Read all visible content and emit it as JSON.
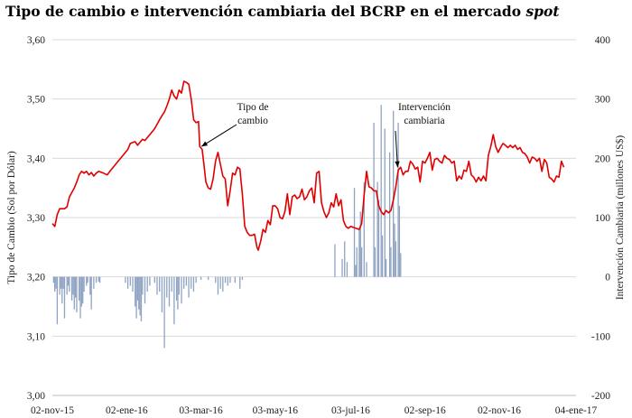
{
  "chart_data": {
    "type": "line",
    "title_main": "Tipo de cambio e intervención cambiaria del BCRP en el mercado ",
    "title_em": "spot",
    "ylabel_left": "Tipo de Cambio (Sol por Dólar)",
    "ylabel_right": "Intervención Cambiaria (millones US$)",
    "x_ticks": [
      "02-nov-15",
      "02-ene-16",
      "03-mar-16",
      "03-may-16",
      "03-jul-16",
      "02-sep-16",
      "02-nov-16",
      "04-ene-17"
    ],
    "y_left_ticks": [
      "3,60",
      "3,50",
      "3,40",
      "3,30",
      "3,20",
      "3,10",
      "3,00"
    ],
    "y_right_ticks": [
      "400",
      "300",
      "200",
      "100",
      "0",
      "-100",
      "-200"
    ],
    "ylim_left": [
      3.0,
      3.6
    ],
    "ylim_right": [
      -200,
      400
    ],
    "xlim": [
      0,
      430
    ],
    "series": [
      {
        "name": "Tipo de cambio",
        "type": "line",
        "color": "#e00000",
        "points": [
          [
            0,
            3.29
          ],
          [
            2,
            3.285
          ],
          [
            4,
            3.305
          ],
          [
            6,
            3.315
          ],
          [
            10,
            3.315
          ],
          [
            12,
            3.318
          ],
          [
            14,
            3.335
          ],
          [
            18,
            3.35
          ],
          [
            20,
            3.36
          ],
          [
            22,
            3.372
          ],
          [
            24,
            3.378
          ],
          [
            26,
            3.375
          ],
          [
            28,
            3.378
          ],
          [
            30,
            3.372
          ],
          [
            32,
            3.376
          ],
          [
            34,
            3.37
          ],
          [
            36,
            3.375
          ],
          [
            38,
            3.378
          ],
          [
            42,
            3.375
          ],
          [
            45,
            3.372
          ],
          [
            48,
            3.38
          ],
          [
            50,
            3.385
          ],
          [
            54,
            3.395
          ],
          [
            58,
            3.405
          ],
          [
            62,
            3.415
          ],
          [
            64,
            3.425
          ],
          [
            68,
            3.428
          ],
          [
            70,
            3.422
          ],
          [
            74,
            3.432
          ],
          [
            76,
            3.43
          ],
          [
            80,
            3.44
          ],
          [
            84,
            3.45
          ],
          [
            88,
            3.465
          ],
          [
            90,
            3.472
          ],
          [
            92,
            3.478
          ],
          [
            94,
            3.488
          ],
          [
            96,
            3.5
          ],
          [
            98,
            3.515
          ],
          [
            100,
            3.505
          ],
          [
            102,
            3.5
          ],
          [
            104,
            3.515
          ],
          [
            106,
            3.51
          ],
          [
            108,
            3.53
          ],
          [
            110,
            3.528
          ],
          [
            112,
            3.525
          ],
          [
            114,
            3.5
          ],
          [
            116,
            3.465
          ],
          [
            118,
            3.46
          ],
          [
            120,
            3.462
          ],
          [
            121,
            3.42
          ],
          [
            123,
            3.415
          ],
          [
            125,
            3.38
          ],
          [
            126,
            3.36
          ],
          [
            128,
            3.35
          ],
          [
            130,
            3.348
          ],
          [
            132,
            3.365
          ],
          [
            134,
            3.395
          ],
          [
            136,
            3.41
          ],
          [
            138,
            3.39
          ],
          [
            140,
            3.37
          ],
          [
            142,
            3.365
          ],
          [
            144,
            3.32
          ],
          [
            146,
            3.345
          ],
          [
            148,
            3.375
          ],
          [
            150,
            3.372
          ],
          [
            152,
            3.385
          ],
          [
            154,
            3.382
          ],
          [
            156,
            3.34
          ],
          [
            158,
            3.285
          ],
          [
            160,
            3.275
          ],
          [
            162,
            3.27
          ],
          [
            164,
            3.27
          ],
          [
            166,
            3.272
          ],
          [
            168,
            3.25
          ],
          [
            169,
            3.245
          ],
          [
            171,
            3.26
          ],
          [
            173,
            3.28
          ],
          [
            175,
            3.275
          ],
          [
            177,
            3.295
          ],
          [
            179,
            3.288
          ],
          [
            181,
            3.32
          ],
          [
            183,
            3.32
          ],
          [
            185,
            3.315
          ],
          [
            187,
            3.3
          ],
          [
            189,
            3.298
          ],
          [
            191,
            3.31
          ],
          [
            193,
            3.34
          ],
          [
            195,
            3.305
          ],
          [
            197,
            3.335
          ],
          [
            199,
            3.338
          ],
          [
            201,
            3.332
          ],
          [
            203,
            3.335
          ],
          [
            205,
            3.348
          ],
          [
            207,
            3.33
          ],
          [
            209,
            3.335
          ],
          [
            211,
            3.345
          ],
          [
            213,
            3.35
          ],
          [
            215,
            3.325
          ],
          [
            217,
            3.375
          ],
          [
            219,
            3.378
          ],
          [
            221,
            3.325
          ],
          [
            223,
            3.31
          ],
          [
            225,
            3.3
          ],
          [
            227,
            3.308
          ],
          [
            229,
            3.325
          ],
          [
            231,
            3.318
          ],
          [
            233,
            3.34
          ],
          [
            235,
            3.32
          ],
          [
            237,
            3.33
          ],
          [
            239,
            3.295
          ],
          [
            241,
            3.285
          ],
          [
            243,
            3.282
          ],
          [
            245,
            3.285
          ],
          [
            248,
            3.283
          ],
          [
            252,
            3.28
          ],
          [
            254,
            3.29
          ],
          [
            256,
            3.338
          ],
          [
            258,
            3.378
          ],
          [
            260,
            3.352
          ],
          [
            262,
            3.35
          ],
          [
            264,
            3.345
          ],
          [
            266,
            3.345
          ],
          [
            268,
            3.32
          ],
          [
            270,
            3.31
          ],
          [
            272,
            3.305
          ],
          [
            274,
            3.312
          ],
          [
            276,
            3.308
          ],
          [
            278,
            3.312
          ],
          [
            280,
            3.33
          ],
          [
            282,
            3.352
          ],
          [
            284,
            3.38
          ],
          [
            286,
            3.385
          ],
          [
            288,
            3.372
          ],
          [
            290,
            3.378
          ],
          [
            292,
            3.378
          ],
          [
            294,
            3.395
          ],
          [
            296,
            3.39
          ],
          [
            298,
            3.382
          ],
          [
            300,
            3.385
          ],
          [
            302,
            3.36
          ],
          [
            304,
            3.395
          ],
          [
            306,
            3.392
          ],
          [
            308,
            3.4
          ],
          [
            310,
            3.41
          ],
          [
            312,
            3.38
          ],
          [
            314,
            3.398
          ],
          [
            316,
            3.4
          ],
          [
            318,
            3.395
          ],
          [
            320,
            3.392
          ],
          [
            322,
            3.405
          ],
          [
            324,
            3.4
          ],
          [
            326,
            3.398
          ],
          [
            328,
            3.392
          ],
          [
            330,
            3.395
          ],
          [
            332,
            3.362
          ],
          [
            334,
            3.37
          ],
          [
            336,
            3.365
          ],
          [
            338,
            3.38
          ],
          [
            340,
            3.378
          ],
          [
            342,
            3.395
          ],
          [
            344,
            3.372
          ],
          [
            346,
            3.368
          ],
          [
            348,
            3.36
          ],
          [
            350,
            3.368
          ],
          [
            352,
            3.362
          ],
          [
            354,
            3.37
          ],
          [
            356,
            3.362
          ],
          [
            358,
            3.405
          ],
          [
            360,
            3.42
          ],
          [
            362,
            3.44
          ],
          [
            364,
            3.42
          ],
          [
            366,
            3.41
          ],
          [
            368,
            3.418
          ],
          [
            370,
            3.425
          ],
          [
            372,
            3.422
          ],
          [
            374,
            3.418
          ],
          [
            376,
            3.422
          ],
          [
            378,
            3.418
          ],
          [
            380,
            3.422
          ],
          [
            382,
            3.415
          ],
          [
            384,
            3.418
          ],
          [
            386,
            3.41
          ],
          [
            388,
            3.408
          ],
          [
            390,
            3.402
          ],
          [
            392,
            3.392
          ],
          [
            394,
            3.402
          ],
          [
            396,
            3.4
          ],
          [
            398,
            3.395
          ],
          [
            400,
            3.4
          ],
          [
            402,
            3.378
          ],
          [
            404,
            3.398
          ],
          [
            406,
            3.392
          ],
          [
            408,
            3.368
          ],
          [
            410,
            3.365
          ],
          [
            412,
            3.36
          ],
          [
            414,
            3.37
          ],
          [
            416,
            3.368
          ],
          [
            418,
            3.395
          ],
          [
            420,
            3.385
          ]
        ]
      },
      {
        "name": "Intervención cambiaria",
        "type": "bar",
        "color": "#8ea3c2",
        "points": [
          [
            1,
            -10
          ],
          [
            2,
            -25
          ],
          [
            3,
            -20
          ],
          [
            4,
            -80
          ],
          [
            6,
            -30
          ],
          [
            7,
            -20
          ],
          [
            8,
            -45
          ],
          [
            9,
            -20
          ],
          [
            10,
            -70
          ],
          [
            12,
            -30
          ],
          [
            13,
            -15
          ],
          [
            14,
            -25
          ],
          [
            16,
            -40
          ],
          [
            17,
            -30
          ],
          [
            18,
            -55
          ],
          [
            19,
            -35
          ],
          [
            20,
            -60
          ],
          [
            22,
            -40
          ],
          [
            23,
            -70
          ],
          [
            24,
            -50
          ],
          [
            25,
            -45
          ],
          [
            26,
            -25
          ],
          [
            28,
            -15
          ],
          [
            29,
            -10
          ],
          [
            31,
            -30
          ],
          [
            32,
            -55
          ],
          [
            34,
            -20
          ],
          [
            36,
            -10
          ],
          [
            38,
            -8
          ],
          [
            39,
            -10
          ],
          [
            60,
            -10
          ],
          [
            62,
            -20
          ],
          [
            64,
            -15
          ],
          [
            66,
            -25
          ],
          [
            68,
            -50
          ],
          [
            69,
            -70
          ],
          [
            70,
            -40
          ],
          [
            71,
            -55
          ],
          [
            72,
            -65
          ],
          [
            73,
            -75
          ],
          [
            74,
            -30
          ],
          [
            76,
            -45
          ],
          [
            78,
            -25
          ],
          [
            80,
            -15
          ],
          [
            84,
            -10
          ],
          [
            86,
            -30
          ],
          [
            88,
            -25
          ],
          [
            90,
            -60
          ],
          [
            92,
            -120
          ],
          [
            94,
            -35
          ],
          [
            96,
            -50
          ],
          [
            98,
            -25
          ],
          [
            100,
            -80
          ],
          [
            102,
            -40
          ],
          [
            103,
            -55
          ],
          [
            104,
            -30
          ],
          [
            106,
            -45
          ],
          [
            108,
            -20
          ],
          [
            110,
            -15
          ],
          [
            112,
            -35
          ],
          [
            114,
            -20
          ],
          [
            116,
            -25
          ],
          [
            118,
            -10
          ],
          [
            122,
            -5
          ],
          [
            128,
            -5
          ],
          [
            134,
            -10
          ],
          [
            136,
            -30
          ],
          [
            138,
            -20
          ],
          [
            140,
            -25
          ],
          [
            142,
            -10
          ],
          [
            144,
            -15
          ],
          [
            146,
            -10
          ],
          [
            150,
            -10
          ],
          [
            154,
            -20
          ],
          [
            156,
            -5
          ],
          [
            232,
            55
          ],
          [
            238,
            30
          ],
          [
            240,
            60
          ],
          [
            242,
            25
          ],
          [
            248,
            150
          ],
          [
            249,
            20
          ],
          [
            250,
            50
          ],
          [
            252,
            80
          ],
          [
            253,
            110
          ],
          [
            254,
            50
          ],
          [
            256,
            160
          ],
          [
            258,
            25
          ],
          [
            264,
            260
          ],
          [
            265,
            50
          ],
          [
            267,
            160
          ],
          [
            268,
            130
          ],
          [
            270,
            290
          ],
          [
            271,
            70
          ],
          [
            273,
            250
          ],
          [
            274,
            30
          ],
          [
            277,
            210
          ],
          [
            278,
            50
          ],
          [
            280,
            280
          ],
          [
            281,
            90
          ],
          [
            282,
            60
          ],
          [
            284,
            260
          ],
          [
            285,
            120
          ],
          [
            286,
            40
          ]
        ]
      }
    ],
    "annotations": [
      {
        "lines": [
          "Tipo de",
          "cambio"
        ],
        "arrow_to": [
          121,
          3.42
        ]
      },
      {
        "lines": [
          "Intervención",
          "cambiaria"
        ],
        "arrow_to": [
          282,
          3.385
        ]
      }
    ],
    "x_tick_positions": [
      0,
      61,
      122,
      183,
      245,
      306,
      367,
      430
    ]
  }
}
